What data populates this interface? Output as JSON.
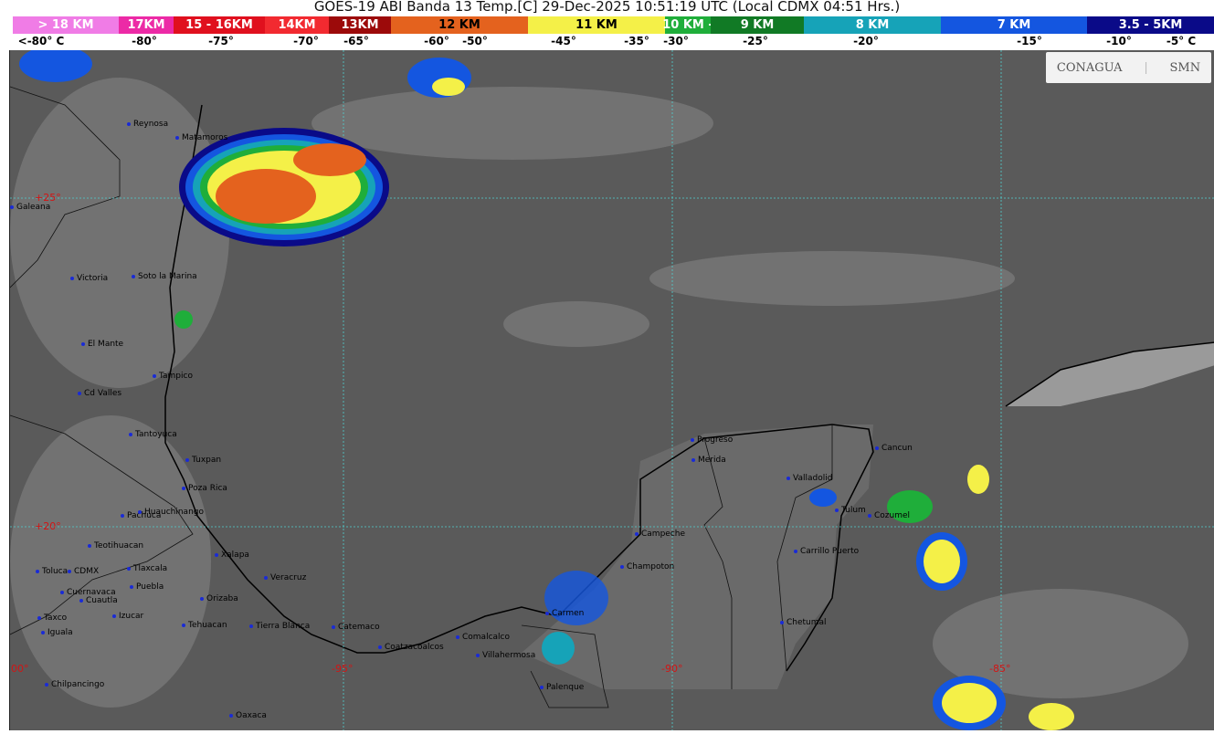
{
  "title": "GOES-19 ABI Banda 13 Temp.[C] 29-Dec-2025 10:51:19 UTC (Local CDMX  04:51 Hrs.)",
  "legend": [
    {
      "label": "> 18 KM",
      "color": "#f07ce6"
    },
    {
      "label": "17KM",
      "color": "#ec2aa6"
    },
    {
      "label": "15 - 16KM",
      "color": "#e0101e"
    },
    {
      "label": "14KM",
      "color": "#f22a30"
    },
    {
      "label": "13KM",
      "color": "#9c0a0a"
    },
    {
      "label": "12 KM",
      "color": "#e4621e"
    },
    {
      "label": "11 KM",
      "color": "#f4f048"
    },
    {
      "label": "10 KM -",
      "color": "#1fae3a"
    },
    {
      "label": "9 KM",
      "color": "#117a25"
    },
    {
      "label": "8 KM",
      "color": "#16a3b8"
    },
    {
      "label": "7 KM",
      "color": "#1456e0"
    },
    {
      "label": "3.5 - 5KM",
      "color": "#0a0a88"
    }
  ],
  "temps": [
    "<-80° C",
    "-80°",
    "-75°",
    "-70°",
    "-65°",
    "-60°",
    "-50°",
    "-45°",
    "-35°",
    "-30°",
    "-25°",
    "-20°",
    "-15°",
    "-10°",
    "-5° C"
  ],
  "logo": {
    "left": "CONAGUA",
    "right": "SMN"
  },
  "grid_labels": [
    "+25°",
    "+20°",
    "-100°",
    "-95°",
    "-90°",
    "-85°"
  ],
  "cities": [
    "Reynosa",
    "Matamoros",
    "Galeana",
    "Victoria",
    "Soto la Marina",
    "El Mante",
    "Tampico",
    "Cd Valles",
    "Tantoyuca",
    "Tuxpan",
    "Poza Rica",
    "Pachuca",
    "Huauchinango",
    "Teotihuacan",
    "Toluca",
    "CDMX",
    "Tlaxcala",
    "Puebla",
    "Cuernavaca",
    "Cuautla",
    "Izucar",
    "Taxco",
    "Iguala",
    "Xalapa",
    "Veracruz",
    "Orizaba",
    "Tehuacan",
    "Tierra Blanca",
    "Catemaco",
    "Coatzacoalcos",
    "Comalcalco",
    "Villahermosa",
    "Carmen",
    "Palenque",
    "Chilpancingo",
    "Oaxaca",
    "Campeche",
    "Champoton",
    "Progreso",
    "Merida",
    "Valladolid",
    "Cancun",
    "Cozumel",
    "Tulum",
    "Carrillo Puerto",
    "Chetumal"
  ]
}
